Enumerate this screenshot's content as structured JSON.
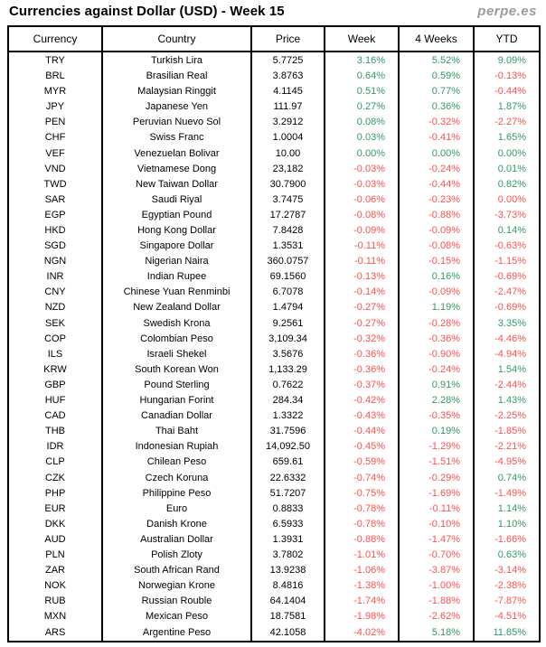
{
  "header": {
    "brand": "perpe.es"
  },
  "colors": {
    "positive": "#339966",
    "negative": "#FF5050",
    "text": "#000000",
    "brand_gray": "#9C9C9C",
    "border": "#000000",
    "background": "#FFFFFF"
  },
  "chart_data": {
    "type": "table",
    "title": "Currencies against Dollar (USD) - Week 15",
    "columns": [
      "Currency",
      "Country",
      "Price",
      "Week",
      "4 Weeks",
      "YTD"
    ],
    "rows": [
      {
        "currency": "TRY",
        "country": "Turkish Lira",
        "price": "5.7725",
        "week": "3.16%",
        "week_dir": "up",
        "four_weeks": "5.52%",
        "four_weeks_dir": "up",
        "ytd": "9.09%",
        "ytd_dir": "up"
      },
      {
        "currency": "BRL",
        "country": "Brasilian Real",
        "price": "3.8763",
        "week": "0.64%",
        "week_dir": "up",
        "four_weeks": "0.59%",
        "four_weeks_dir": "up",
        "ytd": "-0.13%",
        "ytd_dir": "down"
      },
      {
        "currency": "MYR",
        "country": "Malaysian Ringgit",
        "price": "4.1145",
        "week": "0.51%",
        "week_dir": "up",
        "four_weeks": "0.77%",
        "four_weeks_dir": "up",
        "ytd": "-0.44%",
        "ytd_dir": "down"
      },
      {
        "currency": "JPY",
        "country": "Japanese Yen",
        "price": "111.97",
        "week": "0.27%",
        "week_dir": "up",
        "four_weeks": "0.36%",
        "four_weeks_dir": "up",
        "ytd": "1.87%",
        "ytd_dir": "up"
      },
      {
        "currency": "PEN",
        "country": "Peruvian Nuevo Sol",
        "price": "3.2912",
        "week": "0.08%",
        "week_dir": "up",
        "four_weeks": "-0.32%",
        "four_weeks_dir": "down",
        "ytd": "-2.27%",
        "ytd_dir": "down"
      },
      {
        "currency": "CHF",
        "country": "Swiss Franc",
        "price": "1.0004",
        "week": "0.03%",
        "week_dir": "up",
        "four_weeks": "-0.41%",
        "four_weeks_dir": "down",
        "ytd": "1.65%",
        "ytd_dir": "up"
      },
      {
        "currency": "VEF",
        "country": "Venezuelan Bolivar",
        "price": "10.00",
        "week": "0.00%",
        "week_dir": "up",
        "four_weeks": "0.00%",
        "four_weeks_dir": "up",
        "ytd": "0.00%",
        "ytd_dir": "up"
      },
      {
        "currency": "VND",
        "country": "Vietnamese Dong",
        "price": "23,182",
        "week": "-0.03%",
        "week_dir": "down",
        "four_weeks": "-0.24%",
        "four_weeks_dir": "down",
        "ytd": "0.01%",
        "ytd_dir": "up"
      },
      {
        "currency": "TWD",
        "country": "New Taiwan Dollar",
        "price": "30.7900",
        "week": "-0.03%",
        "week_dir": "down",
        "four_weeks": "-0.44%",
        "four_weeks_dir": "down",
        "ytd": "0.82%",
        "ytd_dir": "up"
      },
      {
        "currency": "SAR",
        "country": "Saudi Riyal",
        "price": "3.7475",
        "week": "-0.06%",
        "week_dir": "down",
        "four_weeks": "-0.23%",
        "four_weeks_dir": "down",
        "ytd": "0.00%",
        "ytd_dir": "down"
      },
      {
        "currency": "EGP",
        "country": "Egyptian Pound",
        "price": "17.2787",
        "week": "-0.08%",
        "week_dir": "down",
        "four_weeks": "-0.88%",
        "four_weeks_dir": "down",
        "ytd": "-3.73%",
        "ytd_dir": "down"
      },
      {
        "currency": "HKD",
        "country": "Hong Kong Dollar",
        "price": "7.8428",
        "week": "-0.09%",
        "week_dir": "down",
        "four_weeks": "-0.09%",
        "four_weeks_dir": "down",
        "ytd": "0.14%",
        "ytd_dir": "up"
      },
      {
        "currency": "SGD",
        "country": "Singapore Dollar",
        "price": "1.3531",
        "week": "-0.11%",
        "week_dir": "down",
        "four_weeks": "-0.08%",
        "four_weeks_dir": "down",
        "ytd": "-0.63%",
        "ytd_dir": "down"
      },
      {
        "currency": "NGN",
        "country": "Nigerian Naira",
        "price": "360.0757",
        "week": "-0.11%",
        "week_dir": "down",
        "four_weeks": "-0.15%",
        "four_weeks_dir": "down",
        "ytd": "-1.15%",
        "ytd_dir": "down"
      },
      {
        "currency": "INR",
        "country": "Indian Rupee",
        "price": "69.1560",
        "week": "-0.13%",
        "week_dir": "down",
        "four_weeks": "0.16%",
        "four_weeks_dir": "up",
        "ytd": "-0.69%",
        "ytd_dir": "down"
      },
      {
        "currency": "CNY",
        "country": "Chinese Yuan Renminbi",
        "price": "6.7078",
        "week": "-0.14%",
        "week_dir": "down",
        "four_weeks": "-0.09%",
        "four_weeks_dir": "down",
        "ytd": "-2.47%",
        "ytd_dir": "down"
      },
      {
        "currency": "NZD",
        "country": "New Zealand Dollar",
        "price": "1.4794",
        "week": "-0.27%",
        "week_dir": "down",
        "four_weeks": "1.19%",
        "four_weeks_dir": "up",
        "ytd": "-0.69%",
        "ytd_dir": "down"
      },
      {
        "currency": "SEK",
        "country": "Swedish Krona",
        "price": "9.2561",
        "week": "-0.27%",
        "week_dir": "down",
        "four_weeks": "-0.28%",
        "four_weeks_dir": "down",
        "ytd": "3.35%",
        "ytd_dir": "up"
      },
      {
        "currency": "COP",
        "country": "Colombian Peso",
        "price": "3,109.34",
        "week": "-0.32%",
        "week_dir": "down",
        "four_weeks": "-0.36%",
        "four_weeks_dir": "down",
        "ytd": "-4.46%",
        "ytd_dir": "down"
      },
      {
        "currency": "ILS",
        "country": "Israeli Shekel",
        "price": "3.5676",
        "week": "-0.36%",
        "week_dir": "down",
        "four_weeks": "-0.90%",
        "four_weeks_dir": "down",
        "ytd": "-4.94%",
        "ytd_dir": "down"
      },
      {
        "currency": "KRW",
        "country": "South Korean Won",
        "price": "1,133.29",
        "week": "-0.36%",
        "week_dir": "down",
        "four_weeks": "-0.24%",
        "four_weeks_dir": "down",
        "ytd": "1.54%",
        "ytd_dir": "up"
      },
      {
        "currency": "GBP",
        "country": "Pound Sterling",
        "price": "0.7622",
        "week": "-0.37%",
        "week_dir": "down",
        "four_weeks": "0.91%",
        "four_weeks_dir": "up",
        "ytd": "-2.44%",
        "ytd_dir": "down"
      },
      {
        "currency": "HUF",
        "country": "Hungarian Forint",
        "price": "284.34",
        "week": "-0.42%",
        "week_dir": "down",
        "four_weeks": "2.28%",
        "four_weeks_dir": "up",
        "ytd": "1.43%",
        "ytd_dir": "up"
      },
      {
        "currency": "CAD",
        "country": "Canadian Dollar",
        "price": "1.3322",
        "week": "-0.43%",
        "week_dir": "down",
        "four_weeks": "-0.35%",
        "four_weeks_dir": "down",
        "ytd": "-2.25%",
        "ytd_dir": "down"
      },
      {
        "currency": "THB",
        "country": "Thai Baht",
        "price": "31.7596",
        "week": "-0.44%",
        "week_dir": "down",
        "four_weeks": "0.19%",
        "four_weeks_dir": "up",
        "ytd": "-1.85%",
        "ytd_dir": "down"
      },
      {
        "currency": "IDR",
        "country": "Indonesian Rupiah",
        "price": "14,092.50",
        "week": "-0.45%",
        "week_dir": "down",
        "four_weeks": "-1.29%",
        "four_weeks_dir": "down",
        "ytd": "-2.21%",
        "ytd_dir": "down"
      },
      {
        "currency": "CLP",
        "country": "Chilean Peso",
        "price": "659.61",
        "week": "-0.59%",
        "week_dir": "down",
        "four_weeks": "-1.51%",
        "four_weeks_dir": "down",
        "ytd": "-4.95%",
        "ytd_dir": "down"
      },
      {
        "currency": "CZK",
        "country": "Czech Koruna",
        "price": "22.6332",
        "week": "-0.74%",
        "week_dir": "down",
        "four_weeks": "-0.29%",
        "four_weeks_dir": "down",
        "ytd": "0.74%",
        "ytd_dir": "up"
      },
      {
        "currency": "PHP",
        "country": "Philippine Peso",
        "price": "51.7207",
        "week": "-0.75%",
        "week_dir": "down",
        "four_weeks": "-1.69%",
        "four_weeks_dir": "down",
        "ytd": "-1.49%",
        "ytd_dir": "down"
      },
      {
        "currency": "EUR",
        "country": "Euro",
        "price": "0.8833",
        "week": "-0.78%",
        "week_dir": "down",
        "four_weeks": "-0.11%",
        "four_weeks_dir": "down",
        "ytd": "1.14%",
        "ytd_dir": "up"
      },
      {
        "currency": "DKK",
        "country": "Danish Krone",
        "price": "6.5933",
        "week": "-0.78%",
        "week_dir": "down",
        "four_weeks": "-0.10%",
        "four_weeks_dir": "down",
        "ytd": "1.10%",
        "ytd_dir": "up"
      },
      {
        "currency": "AUD",
        "country": "Australian Dollar",
        "price": "1.3931",
        "week": "-0.88%",
        "week_dir": "down",
        "four_weeks": "-1.47%",
        "four_weeks_dir": "down",
        "ytd": "-1.66%",
        "ytd_dir": "down"
      },
      {
        "currency": "PLN",
        "country": "Polish Zloty",
        "price": "3.7802",
        "week": "-1.01%",
        "week_dir": "down",
        "four_weeks": "-0.70%",
        "four_weeks_dir": "down",
        "ytd": "0.63%",
        "ytd_dir": "up"
      },
      {
        "currency": "ZAR",
        "country": "South African Rand",
        "price": "13.9238",
        "week": "-1.06%",
        "week_dir": "down",
        "four_weeks": "-3.87%",
        "four_weeks_dir": "down",
        "ytd": "-3.14%",
        "ytd_dir": "down"
      },
      {
        "currency": "NOK",
        "country": "Norwegian Krone",
        "price": "8.4816",
        "week": "-1.38%",
        "week_dir": "down",
        "four_weeks": "-1.00%",
        "four_weeks_dir": "down",
        "ytd": "-2.38%",
        "ytd_dir": "down"
      },
      {
        "currency": "RUB",
        "country": "Russian Rouble",
        "price": "64.1404",
        "week": "-1.74%",
        "week_dir": "down",
        "four_weeks": "-1.88%",
        "four_weeks_dir": "down",
        "ytd": "-7.87%",
        "ytd_dir": "down"
      },
      {
        "currency": "MXN",
        "country": "Mexican Peso",
        "price": "18.7581",
        "week": "-1.98%",
        "week_dir": "down",
        "four_weeks": "-2.62%",
        "four_weeks_dir": "down",
        "ytd": "-4.51%",
        "ytd_dir": "down"
      },
      {
        "currency": "ARS",
        "country": "Argentine Peso",
        "price": "42.1058",
        "week": "-4.02%",
        "week_dir": "down",
        "four_weeks": "5.18%",
        "four_weeks_dir": "up",
        "ytd": "11.85%",
        "ytd_dir": "up"
      }
    ]
  }
}
